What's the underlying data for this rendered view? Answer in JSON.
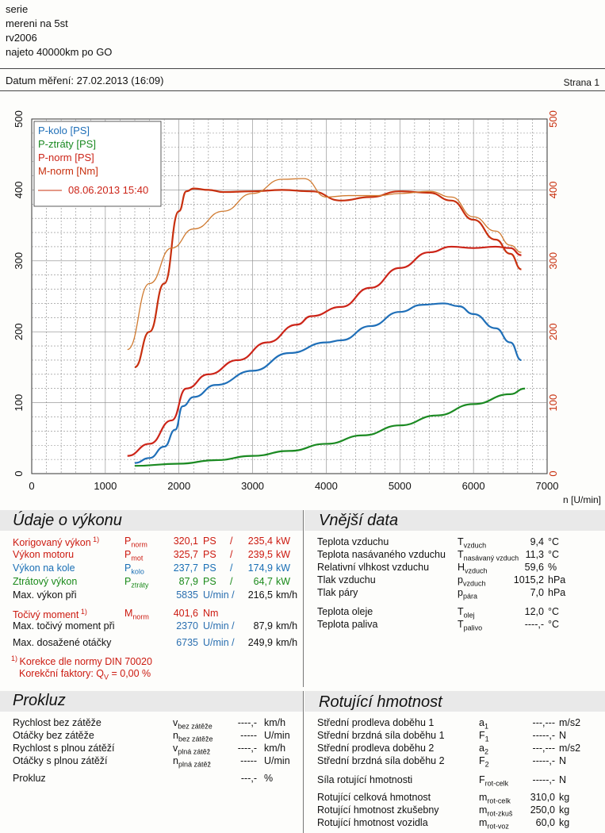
{
  "header": {
    "lines": [
      "serie",
      "mereni na 5st",
      "rv2006",
      "najeto 40000km po GO"
    ],
    "date": "Datum měření: 27.02.2013 (16:09)",
    "page": "Strana 1"
  },
  "chart_data": {
    "type": "line",
    "xlabel": "n [U/min]",
    "xlim": [
      0,
      7000
    ],
    "ylim_left": [
      0,
      500
    ],
    "ylim_right": [
      0,
      500
    ],
    "x_ticks": [
      "0",
      "1000",
      "2000",
      "3000",
      "4000",
      "5000",
      "6000",
      "7000"
    ],
    "y_ticks": [
      "0",
      "100",
      "200",
      "300",
      "400",
      "500"
    ],
    "legend": [
      "P-kolo [PS]",
      "P-ztráty [PS]",
      "P-norm [PS]",
      "M-norm [Nm]"
    ],
    "legend_ref": "08.06.2013 15:40",
    "legend_position": "top-left",
    "grid": true,
    "colors": {
      "p_kolo": "#1f6fb8",
      "p_ztraty": "#1b8a22",
      "p_norm": "#cc2418",
      "m_norm": "#c8300f",
      "ref": "#d07a30"
    },
    "series": [
      {
        "name": "P-kolo [PS]",
        "x": [
          1400,
          1600,
          1800,
          1950,
          2050,
          2200,
          2500,
          3000,
          3500,
          4000,
          4200,
          4600,
          5000,
          5300,
          5600,
          5800,
          6000,
          6300,
          6500,
          6650
        ],
        "y": [
          15,
          22,
          38,
          62,
          95,
          108,
          125,
          145,
          170,
          185,
          188,
          208,
          228,
          238,
          240,
          236,
          225,
          205,
          185,
          160
        ]
      },
      {
        "name": "P-ztráty [PS]",
        "x": [
          1400,
          2000,
          2500,
          3000,
          3500,
          4000,
          4500,
          5000,
          5500,
          6000,
          6500,
          6700
        ],
        "y": [
          11,
          14,
          19,
          25,
          32,
          42,
          54,
          68,
          82,
          98,
          112,
          120
        ]
      },
      {
        "name": "P-norm [PS]",
        "x": [
          1300,
          1600,
          1900,
          2100,
          2400,
          2800,
          3200,
          3600,
          3800,
          4200,
          4600,
          5000,
          5400,
          5700,
          6000,
          6300,
          6500,
          6650
        ],
        "y": [
          25,
          42,
          75,
          120,
          140,
          160,
          185,
          210,
          222,
          235,
          262,
          290,
          312,
          320,
          318,
          320,
          318,
          308
        ]
      },
      {
        "name": "M-norm [Nm]",
        "x": [
          1400,
          1600,
          1800,
          2000,
          2100,
          2200,
          2400,
          2600,
          3000,
          3400,
          3800,
          4200,
          4600,
          5000,
          5400,
          5700,
          6000,
          6300,
          6500,
          6650
        ],
        "y": [
          150,
          200,
          268,
          370,
          398,
          402,
          400,
          397,
          398,
          400,
          398,
          385,
          390,
          398,
          396,
          385,
          358,
          330,
          310,
          288
        ]
      },
      {
        "name": "08.06.2013 15:40",
        "x": [
          1300,
          1600,
          1900,
          2200,
          2600,
          3000,
          3400,
          3700,
          4000,
          4300,
          4700,
          5000,
          5400,
          5700,
          6000,
          6300,
          6500,
          6650
        ],
        "y": [
          175,
          268,
          318,
          345,
          370,
          395,
          415,
          416,
          390,
          392,
          392,
          395,
          398,
          390,
          362,
          342,
          322,
          312
        ]
      }
    ]
  },
  "vykon": {
    "title": "Údaje o výkonu",
    "rows": [
      {
        "label": "Korigovaný výkon",
        "sup": "1)",
        "sym": "P",
        "sub": "norm",
        "v1": "320,1",
        "u1": "PS",
        "v2": "235,4",
        "u2": "kW"
      },
      {
        "label": "Výkon motoru",
        "sup": "",
        "sym": "P",
        "sub": "mot",
        "v1": "325,7",
        "u1": "PS",
        "v2": "239,5",
        "u2": "kW"
      },
      {
        "label": "Výkon na kole",
        "sup": "",
        "sym": "P",
        "sub": "kolo",
        "v1": "237,7",
        "u1": "PS",
        "v2": "174,9",
        "u2": "kW"
      },
      {
        "label": "Ztrátový výkon",
        "sup": "",
        "sym": "P",
        "sub": "ztráty",
        "v1": "87,9",
        "u1": "PS",
        "v2": "64,7",
        "u2": "kW"
      }
    ],
    "max_vykon": {
      "label": "Max. výkon při",
      "rpm": "5835",
      "unit": "U/min /",
      "speed": "216,5",
      "speed_unit": "km/h"
    },
    "moment": {
      "label": "Točivý moment",
      "sup": "1)",
      "sym": "M",
      "sub": "norm",
      "value": "401,6",
      "unit": "Nm"
    },
    "max_moment": {
      "label": "Max. točivý moment při",
      "rpm": "2370",
      "unit": "U/min /",
      "speed": "87,9",
      "speed_unit": "km/h"
    },
    "max_otacky": {
      "label": "Max. dosažené otáčky",
      "rpm": "6735",
      "unit": "U/min /",
      "speed": "249,9",
      "speed_unit": "km/h"
    },
    "footnote1": "Korekce dle normy DIN 70020",
    "footnote2": "Korekční faktory: Q",
    "footnote2_sub": "V",
    "footnote2_val": "=   0,00 %",
    "foot_sup": "1)"
  },
  "vnejsi": {
    "title": "Vnější data",
    "rows": [
      {
        "label": "Teplota vzduchu",
        "sym": "T",
        "sub": "vzduch",
        "value": "9,4",
        "unit": "°C"
      },
      {
        "label": "Teplota nasávaného vzduchu",
        "sym": "T",
        "sub": "nasávaný vzduch",
        "value": "11,3",
        "unit": "°C"
      },
      {
        "label": "Relativní vlhkost vzduchu",
        "sym": "H",
        "sub": "vzduch",
        "value": "59,6",
        "unit": "%"
      },
      {
        "label": "Tlak vzduchu",
        "sym": "p",
        "sub": "vzduch",
        "value": "1015,2",
        "unit": "hPa"
      },
      {
        "label": "Tlak páry",
        "sym": "p",
        "sub": "pára",
        "value": "7,0",
        "unit": "hPa"
      },
      {
        "label": "Teplota oleje",
        "sym": "T",
        "sub": "olej",
        "value": "12,0",
        "unit": "°C"
      },
      {
        "label": "Teplota paliva",
        "sym": "T",
        "sub": "palivo",
        "value": "----,-",
        "unit": "°C"
      }
    ]
  },
  "prokluz": {
    "title": "Prokluz",
    "rows": [
      {
        "label": "Rychlost bez zátěže",
        "sym": "v",
        "sub": "bez zátěže",
        "value": "----,-",
        "unit": "km/h"
      },
      {
        "label": "Otáčky bez zátěže",
        "sym": "n",
        "sub": "bez zátěže",
        "value": "-----",
        "unit": "U/min"
      },
      {
        "label": "Rychlost s plnou zátěží",
        "sym": "v",
        "sub": "plná zátěž",
        "value": "----,-",
        "unit": "km/h"
      },
      {
        "label": "Otáčky s plnou zátěží",
        "sym": "n",
        "sub": "plná zátěž",
        "value": "-----",
        "unit": "U/min"
      },
      {
        "label": "Prokluz",
        "sym": "",
        "sub": "",
        "value": "---,-",
        "unit": "%"
      }
    ]
  },
  "rotujici": {
    "title": "Rotující hmotnost",
    "rows": [
      {
        "label": "Střední prodleva doběhu 1",
        "sym": "a",
        "sub": "1",
        "value": "---,---",
        "unit": "m/s2"
      },
      {
        "label": "Střední brzdná síla doběhu 1",
        "sym": "F",
        "sub": "1",
        "value": "-----,-",
        "unit": "N"
      },
      {
        "label": "Střední prodleva doběhu 2",
        "sym": "a",
        "sub": "2",
        "value": "---,---",
        "unit": "m/s2"
      },
      {
        "label": "Střední brzdná síla doběhu 2",
        "sym": "F",
        "sub": "2",
        "value": "-----,-",
        "unit": "N"
      },
      {
        "label": "Síla rotující hmotnosti",
        "sym": "F",
        "sub": "rot-celk",
        "value": "-----,-",
        "unit": "N"
      },
      {
        "label": "Rotující celková hmotnost",
        "sym": "m",
        "sub": "rot-celk",
        "value": "310,0",
        "unit": "kg"
      },
      {
        "label": "Rotující hmotnost zkušebny",
        "sym": "m",
        "sub": "rot-zkuš",
        "value": "250,0",
        "unit": "kg"
      },
      {
        "label": "Rotující hmotnost vozidla",
        "sym": "m",
        "sub": "rot-voz",
        "value": "60,0",
        "unit": "kg"
      }
    ]
  }
}
